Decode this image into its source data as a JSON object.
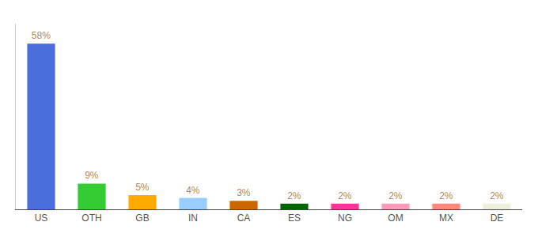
{
  "chart_data": {
    "type": "bar",
    "categories": [
      "US",
      "OTH",
      "GB",
      "IN",
      "CA",
      "ES",
      "NG",
      "OM",
      "MX",
      "DE"
    ],
    "values": [
      58,
      9,
      5,
      4,
      3,
      2,
      2,
      2,
      2,
      2
    ],
    "value_labels": [
      "58%",
      "9%",
      "5%",
      "4%",
      "3%",
      "2%",
      "2%",
      "2%",
      "2%",
      "2%"
    ],
    "colors": [
      "#4a6fdc",
      "#33cc33",
      "#ffaa00",
      "#99ccff",
      "#cc6600",
      "#006600",
      "#ff3399",
      "#ff99bb",
      "#ff8877",
      "#f0eedc"
    ],
    "ylim": [
      0,
      65
    ],
    "data_labels": true,
    "tick_labels": "x",
    "grid": false
  }
}
